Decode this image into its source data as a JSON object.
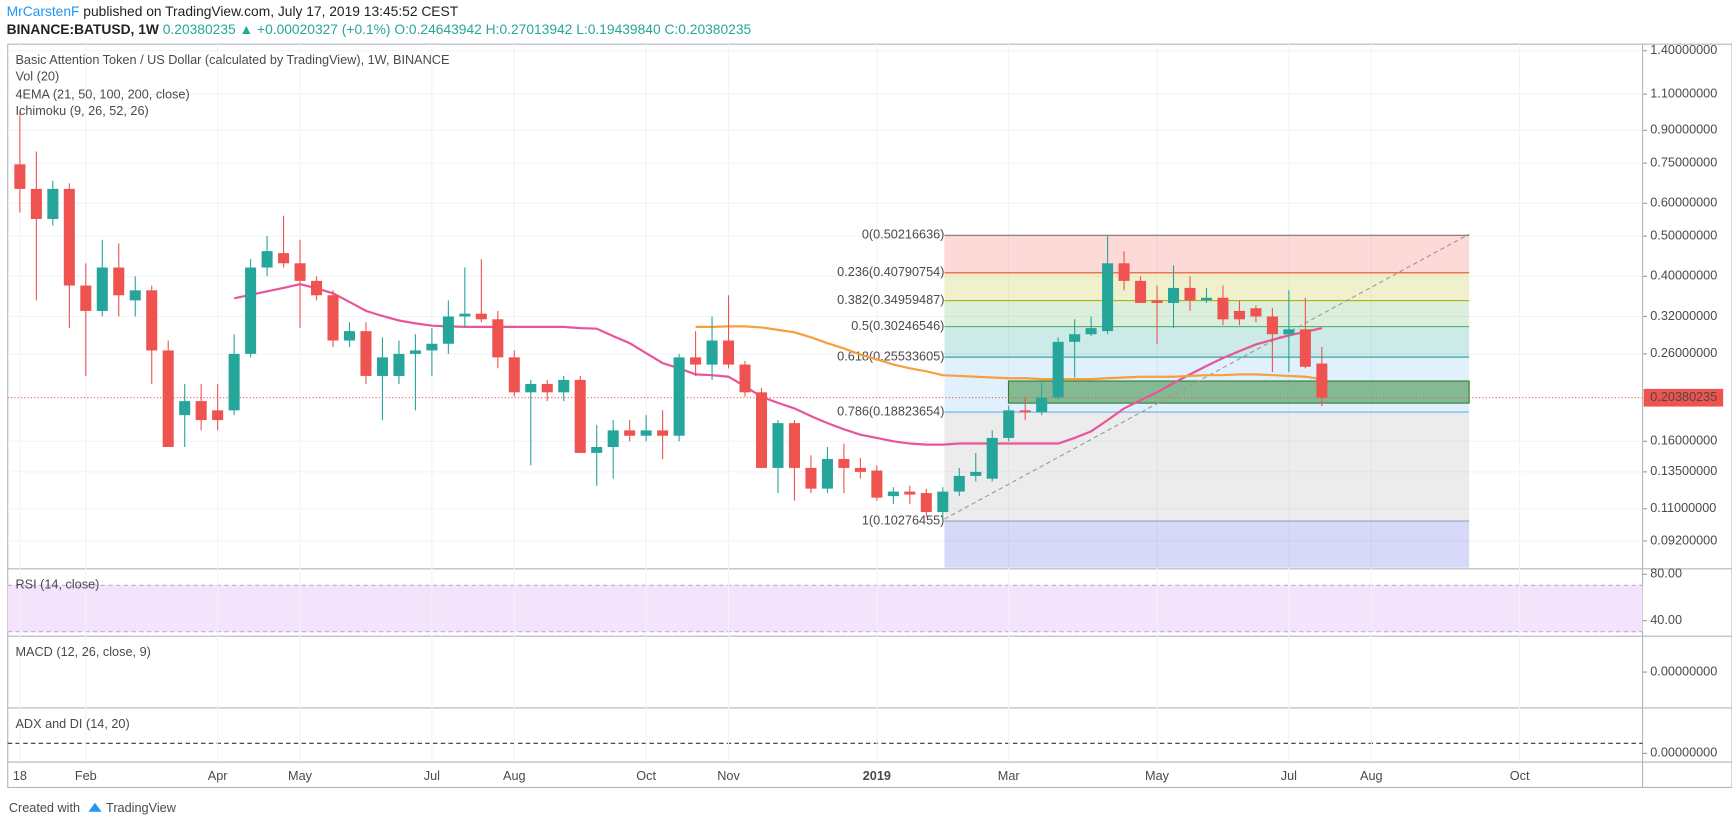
{
  "header": {
    "author": "MrCarstenF",
    "published": "published on TradingView.com, July 17, 2019 13:45:52 CEST",
    "symbol": "BINANCE:BATUSD, 1W",
    "price": "0.20380235",
    "change": "▲ +0.00020327 (+0.1%)",
    "o": "O:0.24643942",
    "h": "H:0.27013942",
    "l": "L:0.19439840",
    "c": "C:0.20380235"
  },
  "footer": {
    "created": "Created with",
    "brand": "TradingView"
  },
  "chart_data": {
    "type": "candlestick",
    "title": "Basic Attention Token / US Dollar (calculated by TradingView), 1W, BINANCE",
    "indicators": [
      "Vol (20)",
      "4EMA (21, 50, 100, 200, close)",
      "Ichimoku (9, 26, 52, 26)"
    ],
    "categories": [
      "18",
      null,
      null,
      null,
      "Feb",
      null,
      null,
      null,
      null,
      null,
      null,
      null,
      "Apr",
      null,
      null,
      null,
      null,
      "May",
      null,
      null,
      null,
      null,
      null,
      null,
      null,
      "Jul",
      null,
      null,
      null,
      null,
      "Aug",
      null,
      null,
      null,
      null,
      null,
      null,
      null,
      "Oct",
      null,
      null,
      null,
      null,
      "Nov",
      null,
      null,
      null,
      null,
      null,
      null,
      null,
      null,
      "2019",
      null,
      null,
      null,
      null,
      null,
      null,
      null,
      "Mar",
      null,
      null,
      null,
      null,
      null,
      null,
      null,
      null,
      "May",
      null,
      null,
      null,
      null,
      null,
      null,
      null,
      "Jul",
      null,
      null,
      null,
      null,
      "Aug",
      null,
      null,
      null,
      null,
      null,
      null,
      null,
      null,
      "Oct",
      null,
      null,
      null,
      null,
      null,
      null,
      null
    ],
    "ohlc": [
      [
        0.745,
        1.0,
        0.57,
        0.65
      ],
      [
        0.65,
        0.8,
        0.35,
        0.55
      ],
      [
        0.55,
        0.68,
        0.53,
        0.65
      ],
      [
        0.65,
        0.67,
        0.3,
        0.38
      ],
      [
        0.38,
        0.43,
        0.23,
        0.33
      ],
      [
        0.33,
        0.49,
        0.32,
        0.42
      ],
      [
        0.42,
        0.48,
        0.32,
        0.36
      ],
      [
        0.35,
        0.4,
        0.32,
        0.37
      ],
      [
        0.37,
        0.38,
        0.22,
        0.265
      ],
      [
        0.265,
        0.28,
        0.155,
        0.155
      ],
      [
        0.185,
        0.22,
        0.155,
        0.2
      ],
      [
        0.2,
        0.22,
        0.17,
        0.18
      ],
      [
        0.19,
        0.22,
        0.17,
        0.18
      ],
      [
        0.19,
        0.29,
        0.185,
        0.26
      ],
      [
        0.26,
        0.44,
        0.255,
        0.42
      ],
      [
        0.42,
        0.5,
        0.4,
        0.46
      ],
      [
        0.455,
        0.56,
        0.42,
        0.43
      ],
      [
        0.43,
        0.49,
        0.3,
        0.39
      ],
      [
        0.39,
        0.4,
        0.35,
        0.36
      ],
      [
        0.36,
        0.37,
        0.27,
        0.28
      ],
      [
        0.28,
        0.31,
        0.27,
        0.295
      ],
      [
        0.295,
        0.31,
        0.22,
        0.23
      ],
      [
        0.23,
        0.285,
        0.18,
        0.255
      ],
      [
        0.23,
        0.28,
        0.22,
        0.26
      ],
      [
        0.26,
        0.29,
        0.19,
        0.265
      ],
      [
        0.265,
        0.3,
        0.23,
        0.275
      ],
      [
        0.275,
        0.35,
        0.26,
        0.32
      ],
      [
        0.32,
        0.42,
        0.3,
        0.325
      ],
      [
        0.325,
        0.44,
        0.31,
        0.315
      ],
      [
        0.315,
        0.33,
        0.24,
        0.255
      ],
      [
        0.255,
        0.265,
        0.205,
        0.21
      ],
      [
        0.21,
        0.225,
        0.14,
        0.22
      ],
      [
        0.22,
        0.225,
        0.2,
        0.21
      ],
      [
        0.21,
        0.23,
        0.2,
        0.225
      ],
      [
        0.225,
        0.23,
        0.15,
        0.15
      ],
      [
        0.15,
        0.175,
        0.125,
        0.155
      ],
      [
        0.155,
        0.18,
        0.13,
        0.17
      ],
      [
        0.17,
        0.18,
        0.16,
        0.165
      ],
      [
        0.165,
        0.185,
        0.16,
        0.17
      ],
      [
        0.17,
        0.19,
        0.145,
        0.165
      ],
      [
        0.165,
        0.26,
        0.16,
        0.255
      ],
      [
        0.255,
        0.295,
        0.23,
        0.245
      ],
      [
        0.245,
        0.32,
        0.225,
        0.28
      ],
      [
        0.28,
        0.36,
        0.24,
        0.245
      ],
      [
        0.245,
        0.25,
        0.205,
        0.21
      ],
      [
        0.21,
        0.215,
        0.138,
        0.138
      ],
      [
        0.138,
        0.18,
        0.12,
        0.177
      ],
      [
        0.177,
        0.18,
        0.115,
        0.138
      ],
      [
        0.138,
        0.148,
        0.12,
        0.123
      ],
      [
        0.123,
        0.155,
        0.12,
        0.145
      ],
      [
        0.145,
        0.158,
        0.12,
        0.138
      ],
      [
        0.138,
        0.146,
        0.13,
        0.135
      ],
      [
        0.136,
        0.14,
        0.115,
        0.117
      ],
      [
        0.118,
        0.124,
        0.113,
        0.121
      ],
      [
        0.121,
        0.125,
        0.113,
        0.119
      ],
      [
        0.12,
        0.123,
        0.105,
        0.108
      ],
      [
        0.108,
        0.124,
        0.104,
        0.121
      ],
      [
        0.121,
        0.138,
        0.118,
        0.132
      ],
      [
        0.132,
        0.15,
        0.128,
        0.135
      ],
      [
        0.13,
        0.17,
        0.128,
        0.163
      ],
      [
        0.163,
        0.195,
        0.16,
        0.19
      ],
      [
        0.19,
        0.205,
        0.18,
        0.188
      ],
      [
        0.188,
        0.222,
        0.185,
        0.204
      ],
      [
        0.204,
        0.285,
        0.202,
        0.278
      ],
      [
        0.278,
        0.315,
        0.228,
        0.29
      ],
      [
        0.29,
        0.32,
        0.287,
        0.3
      ],
      [
        0.295,
        0.5,
        0.29,
        0.43
      ],
      [
        0.43,
        0.46,
        0.37,
        0.39
      ],
      [
        0.39,
        0.4,
        0.35,
        0.345
      ],
      [
        0.35,
        0.38,
        0.275,
        0.345
      ],
      [
        0.345,
        0.425,
        0.3,
        0.375
      ],
      [
        0.375,
        0.4,
        0.33,
        0.35
      ],
      [
        0.35,
        0.375,
        0.345,
        0.355
      ],
      [
        0.355,
        0.38,
        0.305,
        0.315
      ],
      [
        0.33,
        0.35,
        0.305,
        0.315
      ],
      [
        0.335,
        0.34,
        0.31,
        0.32
      ],
      [
        0.32,
        0.335,
        0.235,
        0.29
      ],
      [
        0.29,
        0.37,
        0.235,
        0.298
      ],
      [
        0.298,
        0.355,
        0.24,
        0.242
      ],
      [
        0.24643942,
        0.27013942,
        0.1943984,
        0.20380235
      ],
      null,
      null,
      null,
      null,
      null,
      null,
      null,
      null,
      null,
      null,
      null,
      null,
      null,
      null,
      null,
      null,
      null,
      null,
      null
    ],
    "up_color": "#26a69a",
    "down_color": "#ef5350",
    "log_scale": true,
    "grid": true,
    "ylim": [
      0.0793,
      1.452
    ],
    "yticks": [
      {
        "value": 1.4,
        "label": "1.40000000"
      },
      {
        "value": 1.1,
        "label": "1.10000000"
      },
      {
        "value": 0.9,
        "label": "0.90000000"
      },
      {
        "value": 0.75,
        "label": "0.75000000"
      },
      {
        "value": 0.6,
        "label": "0.60000000"
      },
      {
        "value": 0.5,
        "label": "0.50000000"
      },
      {
        "value": 0.4,
        "label": "0.40000000"
      },
      {
        "value": 0.32,
        "label": "0.32000000"
      },
      {
        "value": 0.26,
        "label": "0.26000000"
      },
      {
        "value": 0.16,
        "label": "0.16000000"
      },
      {
        "value": 0.135,
        "label": "0.13500000"
      },
      {
        "value": 0.11,
        "label": "0.11000000"
      },
      {
        "value": 0.092,
        "label": "0.09200000"
      }
    ],
    "last_price": 0.20380235,
    "lines": [
      {
        "color": "#e8559a",
        "values": [
          null,
          null,
          null,
          null,
          null,
          null,
          null,
          null,
          null,
          null,
          null,
          null,
          null,
          0.354,
          0.361,
          0.368,
          0.375,
          0.383,
          0.374,
          0.364,
          0.347,
          0.33,
          0.321,
          0.313,
          0.308,
          0.304,
          0.303,
          0.302,
          0.302,
          0.302,
          0.302,
          0.302,
          0.302,
          0.302,
          0.3,
          0.299,
          0.287,
          0.276,
          0.261,
          0.247,
          0.24,
          0.232,
          0.231,
          0.229,
          0.217,
          0.205,
          0.198,
          0.192,
          0.184,
          0.177,
          0.171,
          0.166,
          0.163,
          0.16,
          0.158,
          0.157,
          0.157,
          0.158,
          0.158,
          0.158,
          0.158,
          0.158,
          0.158,
          0.158,
          0.163,
          0.169,
          0.18,
          0.192,
          0.201,
          0.21,
          0.221,
          0.232,
          0.243,
          0.254,
          0.264,
          0.274,
          0.281,
          0.288,
          0.294,
          0.3,
          null,
          null,
          null,
          null,
          null,
          null,
          null,
          null,
          null,
          null,
          null,
          null,
          null,
          null,
          null,
          null,
          null,
          null,
          null
        ]
      },
      {
        "color": "#f5a03c",
        "values": [
          null,
          null,
          null,
          null,
          null,
          null,
          null,
          null,
          null,
          null,
          null,
          null,
          null,
          null,
          null,
          null,
          null,
          null,
          null,
          null,
          null,
          null,
          null,
          null,
          null,
          null,
          null,
          null,
          null,
          null,
          null,
          null,
          null,
          null,
          null,
          null,
          null,
          null,
          null,
          null,
          null,
          0.302,
          0.302,
          0.303,
          0.303,
          0.301,
          0.297,
          0.293,
          0.285,
          0.276,
          0.268,
          0.259,
          0.252,
          0.245,
          0.24,
          0.236,
          0.231,
          0.23,
          0.229,
          0.228,
          0.227,
          0.227,
          0.226,
          0.226,
          0.226,
          0.226,
          0.227,
          0.228,
          0.229,
          0.229,
          0.229,
          0.23,
          0.231,
          0.231,
          0.232,
          0.232,
          0.231,
          0.23,
          0.229,
          0.226,
          null,
          null,
          null,
          null,
          null,
          null,
          null,
          null,
          null,
          null,
          null,
          null,
          null,
          null,
          null,
          null,
          null,
          null,
          null
        ]
      }
    ],
    "fib_levels": [
      {
        "price": 0.50216636,
        "label": "0(0.50216636)",
        "color": "#787b86"
      },
      {
        "price": 0.40790754,
        "label": "0.236(0.40790754)",
        "color": "#f44336"
      },
      {
        "price": 0.34959487,
        "label": "0.382(0.34959487)",
        "color": "#b5b800"
      },
      {
        "price": 0.30246546,
        "label": "0.5(0.30246546)",
        "color": "#4caf50"
      },
      {
        "price": 0.25533605,
        "label": "0.618(0.25533605)",
        "color": "#009688"
      },
      {
        "price": 0.18823654,
        "label": "0.786(0.18823654)",
        "color": "#64b5f6"
      },
      {
        "price": 0.10276455,
        "label": "1(0.10276455)",
        "color": "#9e9e9e"
      }
    ]
  },
  "panels": [
    {
      "title": "RSI (14, close)",
      "ylim": [
        27.6,
        83.8
      ],
      "yticks": [
        {
          "value": 80,
          "label": "80.00"
        },
        {
          "value": 40,
          "label": "40.00"
        }
      ]
    },
    {
      "title": "MACD (12, 26, close, 9)",
      "ylim": [
        -1,
        1
      ],
      "yticks": [
        {
          "value": 0,
          "label": "0.00000000"
        }
      ]
    },
    {
      "title": "ADX and DI (14, 20)",
      "ylim": [
        -7,
        41
      ],
      "yticks": [
        {
          "value": 0,
          "label": "0.00000000"
        }
      ]
    }
  ]
}
